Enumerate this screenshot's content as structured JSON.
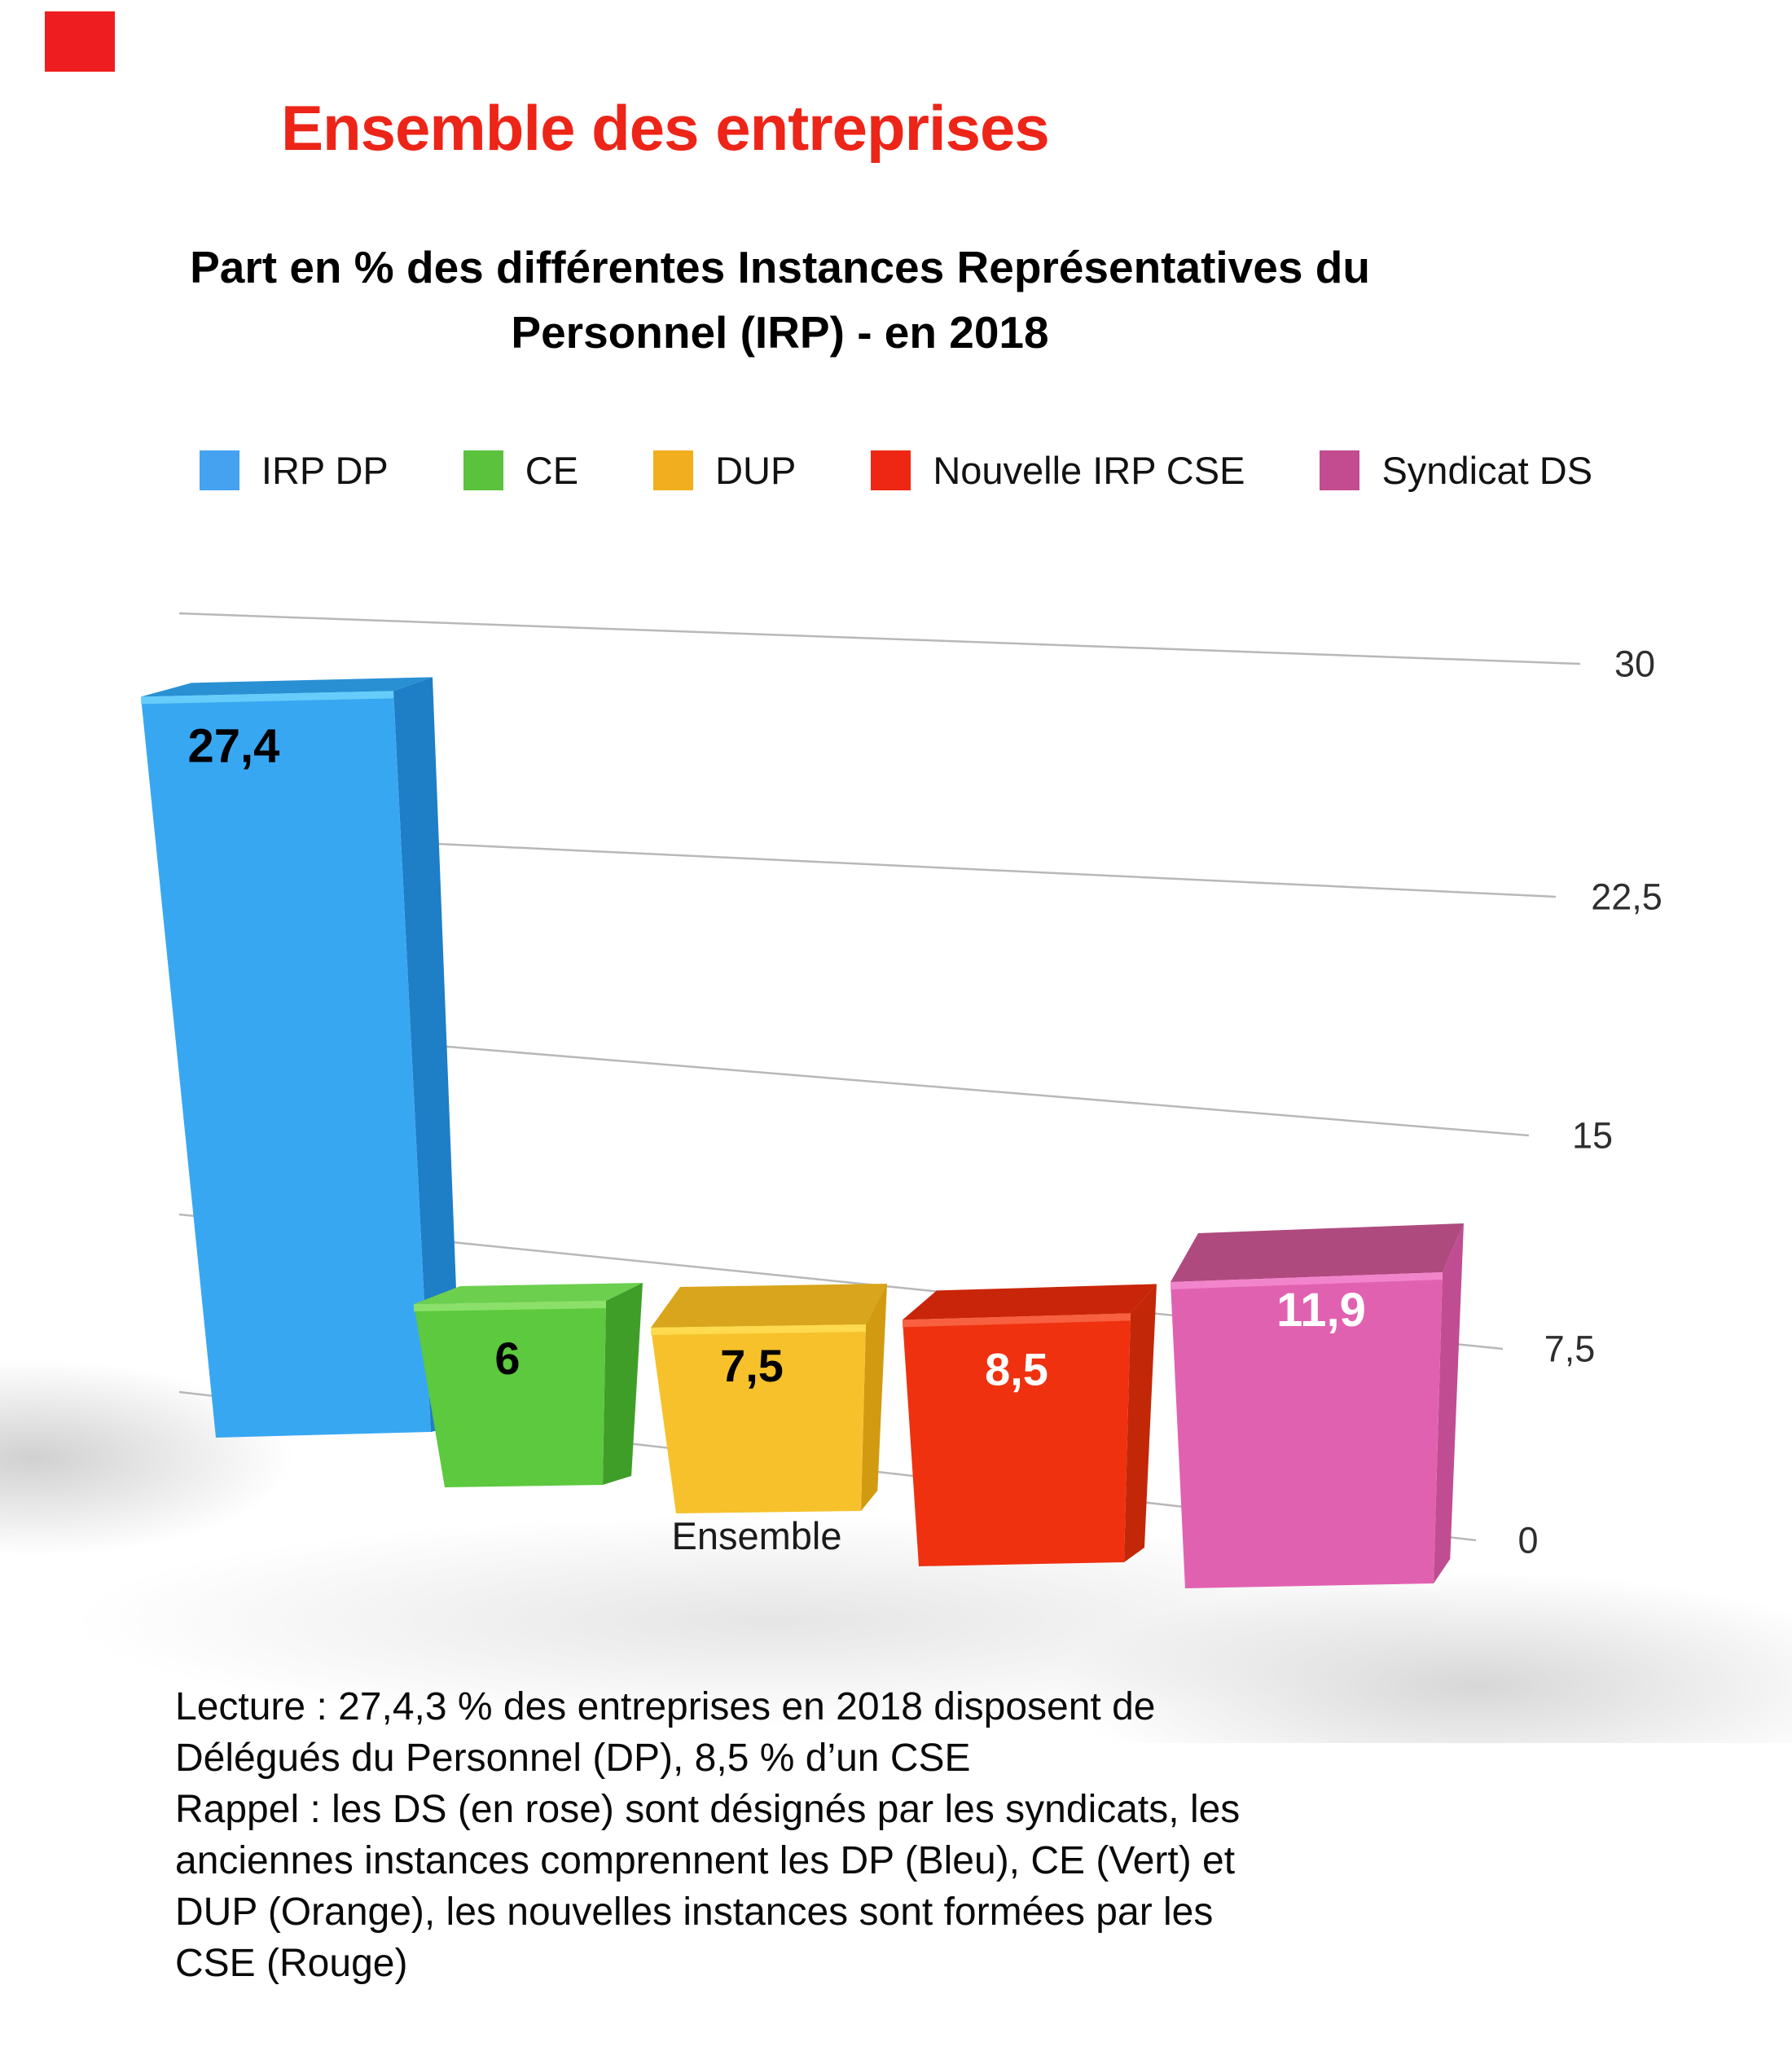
{
  "page": {
    "background": "#ffffff"
  },
  "corner_marker": {
    "color": "#ee1d1f"
  },
  "header": {
    "title": "Ensemble des entreprises",
    "title_color": "#ed2418",
    "subtitle_line1": "Part en % des différentes Instances Représentatives du",
    "subtitle_line2": "Personnel (IRP) - en 2018"
  },
  "legend": {
    "items": [
      {
        "label": "IRP DP",
        "color": "#45a2f0"
      },
      {
        "label": "CE",
        "color": "#5bc23d"
      },
      {
        "label": "DUP",
        "color": "#f1af1f"
      },
      {
        "label": "Nouvelle IRP CSE",
        "color": "#ee2714"
      },
      {
        "label": "Syndicat DS",
        "color": "#c34c90"
      }
    ]
  },
  "chart_data": {
    "type": "bar",
    "style": "3d-perspective",
    "title": "Part en % des différentes Instances Représentatives du Personnel (IRP) - en 2018",
    "categories": [
      "Ensemble"
    ],
    "series": [
      {
        "name": "IRP DP",
        "value": 27.4,
        "value_label": "27,4",
        "color": "#38a7f2",
        "color_top": "#2a90d4",
        "color_side": "#1e7ec6",
        "color_bevel": "#6fd4fb",
        "value_label_color": "#000000"
      },
      {
        "name": "CE",
        "value": 6,
        "value_label": "6",
        "color": "#5cc93e",
        "color_top": "#6ccf4e",
        "color_side": "#3f9e28",
        "color_bevel": "#93e472",
        "value_label_color": "#000000"
      },
      {
        "name": "DUP",
        "value": 7.5,
        "value_label": "7,5",
        "color": "#f6c12b",
        "color_top": "#d9a51c",
        "color_side": "#d29a10",
        "color_bevel": "#ffde55",
        "value_label_color": "#000000"
      },
      {
        "name": "Nouvelle IRP CSE",
        "value": 8.5,
        "value_label": "8,5",
        "color": "#ef3110",
        "color_top": "#c9250a",
        "color_side": "#c22708",
        "color_bevel": "#f96848",
        "value_label_color": "#ffffff"
      },
      {
        "name": "Syndicat DS",
        "value": 11.9,
        "value_label": "11,9",
        "color": "#e161b1",
        "color_top": "#af4a7f",
        "color_side": "#c04d92",
        "color_bevel": "#f48bd0",
        "value_label_color": "#ffffff"
      }
    ],
    "ylim": [
      0,
      30
    ],
    "yticks": [
      {
        "value": 0,
        "label": "0"
      },
      {
        "value": 7.5,
        "label": "7,5"
      },
      {
        "value": 15,
        "label": "15"
      },
      {
        "value": 22.5,
        "label": "22,5"
      },
      {
        "value": 30,
        "label": "30"
      }
    ],
    "grid": true,
    "legend_position": "top",
    "xlabel": "",
    "ylabel": ""
  },
  "footer": {
    "lines": [
      "Lecture : 27,4,3 % des entreprises en 2018 disposent de",
      "Délégués du Personnel (DP), 8,5 % d’un CSE",
      "Rappel : les DS (en rose) sont désignés par les syndicats, les",
      "anciennes instances comprennent les DP (Bleu), CE (Vert) et",
      "DUP (Orange), les nouvelles instances sont formées par les",
      "CSE (Rouge)"
    ]
  }
}
